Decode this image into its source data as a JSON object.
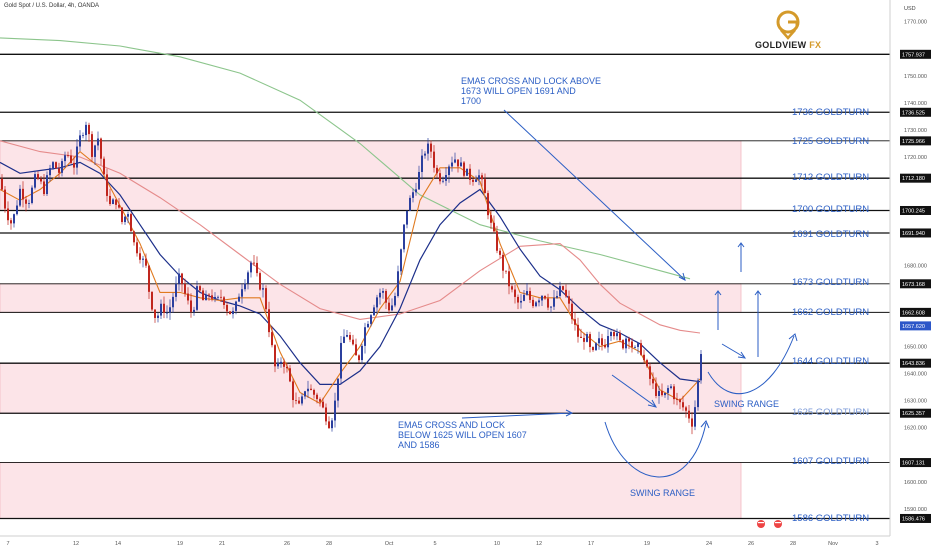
{
  "header": {
    "title": "Gold Spot / U.S. Dollar, 4h, OANDA"
  },
  "logo": {
    "word_main": "GOLDVIEW",
    "word_accent": "FX"
  },
  "axis_unit": "USD",
  "annotations": {
    "ema_above": [
      "EMA5 CROSS AND LOCK ABOVE",
      "1673 WILL OPEN 1691 AND",
      "1700"
    ],
    "ema_below": [
      "EMA5 CROSS AND LOCK",
      "BELOW 1625 WILL OPEN 1607",
      "AND 1586"
    ],
    "swing_range_1": "SWING RANGE",
    "swing_range_2": "SWING RANGE"
  },
  "colors": {
    "accent_blue": "#2b5ec4",
    "zone_fill": "#fce4e8",
    "bull": "#2b3f9e",
    "bear": "#c0261e",
    "ema5": "#e07a1f",
    "ema_blue": "#1c2f8a",
    "ema_red": "#e58b8b",
    "ema_green": "#8cc58c"
  },
  "chart_data": {
    "type": "candlestick",
    "symbol": "XAUUSD",
    "timeframe": "4h",
    "ylim": [
      1580,
      1778
    ],
    "y_ticks": [
      1590,
      1600,
      1610,
      1620,
      1630,
      1640,
      1650,
      1660,
      1670,
      1680,
      1690,
      1700,
      1710,
      1720,
      1730,
      1740,
      1750,
      1760,
      1770
    ],
    "x_labels": [
      "7",
      "12",
      "14",
      "19",
      "21",
      "26",
      "28",
      "Oct",
      "5",
      "10",
      "12",
      "17",
      "19",
      "24",
      "26",
      "28",
      "Nov",
      "3"
    ],
    "level_lines": [
      {
        "label": "1757.937",
        "value": 1757.937
      },
      {
        "label": "1736.525",
        "value": 1736.525
      },
      {
        "label": "1725.966",
        "value": 1725.966
      },
      {
        "label": "1712.180",
        "value": 1712.18
      },
      {
        "label": "1700.245",
        "value": 1700.245
      },
      {
        "label": "1691.940",
        "value": 1691.94
      },
      {
        "label": "1673.168",
        "value": 1673.168
      },
      {
        "label": "1662.608",
        "value": 1662.608
      },
      {
        "label": "1643.836",
        "value": 1643.836
      },
      {
        "label": "1625.357",
        "value": 1625.357
      },
      {
        "label": "1607.131",
        "value": 1607.131
      },
      {
        "label": "1586.476",
        "value": 1586.476
      }
    ],
    "current_price": {
      "label": "1657.620",
      "value": 1657.62
    },
    "goldturns": [
      {
        "label": "1736 GOLDTURN",
        "value": 1736
      },
      {
        "label": "1725 GOLDTURN",
        "value": 1725
      },
      {
        "label": "1712 GOLDTURN",
        "value": 1712
      },
      {
        "label": "1700 GOLDTURN",
        "value": 1700
      },
      {
        "label": "1691 GOLDTURN",
        "value": 1691
      },
      {
        "label": "1673 GOLDTURN",
        "value": 1673
      },
      {
        "label": "1662 GOLDTURN",
        "value": 1662
      },
      {
        "label": "1644 GOLDTURN",
        "value": 1644
      },
      {
        "label": "1625 GOLDTURN",
        "value": 1625
      },
      {
        "label": "1607 GOLDTURN",
        "value": 1607
      },
      {
        "label": "1586 GOLDTURN",
        "value": 1586
      }
    ],
    "zones": [
      {
        "from": 1700.245,
        "to": 1725.966
      },
      {
        "from": 1662.608,
        "to": 1673.168
      },
      {
        "from": 1625.357,
        "to": 1643.836
      },
      {
        "from": 1586.476,
        "to": 1607.131
      }
    ],
    "price_path": [
      [
        0,
        1712
      ],
      [
        6,
        1700
      ],
      [
        12,
        1695
      ],
      [
        20,
        1708
      ],
      [
        28,
        1703
      ],
      [
        36,
        1713
      ],
      [
        44,
        1708
      ],
      [
        52,
        1718
      ],
      [
        60,
        1714
      ],
      [
        66,
        1722
      ],
      [
        74,
        1717
      ],
      [
        80,
        1727
      ],
      [
        86,
        1733
      ],
      [
        92,
        1722
      ],
      [
        98,
        1727
      ],
      [
        104,
        1712
      ],
      [
        110,
        1702
      ],
      [
        116,
        1704
      ],
      [
        122,
        1696
      ],
      [
        128,
        1700
      ],
      [
        134,
        1688
      ],
      [
        140,
        1684
      ],
      [
        146,
        1679
      ],
      [
        150,
        1668
      ],
      [
        156,
        1660
      ],
      [
        162,
        1665
      ],
      [
        168,
        1662
      ],
      [
        174,
        1670
      ],
      [
        180,
        1676
      ],
      [
        186,
        1668
      ],
      [
        192,
        1662
      ],
      [
        198,
        1672
      ],
      [
        204,
        1666
      ],
      [
        210,
        1670
      ],
      [
        216,
        1666
      ],
      [
        222,
        1669
      ],
      [
        228,
        1663
      ],
      [
        234,
        1662
      ],
      [
        240,
        1671
      ],
      [
        246,
        1676
      ],
      [
        252,
        1682
      ],
      [
        258,
        1674
      ],
      [
        264,
        1670
      ],
      [
        270,
        1654
      ],
      [
        276,
        1640
      ],
      [
        282,
        1646
      ],
      [
        288,
        1640
      ],
      [
        294,
        1630
      ],
      [
        300,
        1627
      ],
      [
        306,
        1636
      ],
      [
        312,
        1633
      ],
      [
        318,
        1631
      ],
      [
        324,
        1626
      ],
      [
        330,
        1621
      ],
      [
        336,
        1631
      ],
      [
        340,
        1648
      ],
      [
        346,
        1656
      ],
      [
        352,
        1650
      ],
      [
        358,
        1644
      ],
      [
        364,
        1656
      ],
      [
        370,
        1662
      ],
      [
        376,
        1668
      ],
      [
        382,
        1671
      ],
      [
        388,
        1664
      ],
      [
        394,
        1666
      ],
      [
        400,
        1682
      ],
      [
        406,
        1700
      ],
      [
        412,
        1706
      ],
      [
        418,
        1712
      ],
      [
        424,
        1722
      ],
      [
        430,
        1724
      ],
      [
        436,
        1714
      ],
      [
        442,
        1712
      ],
      [
        448,
        1717
      ],
      [
        454,
        1720
      ],
      [
        460,
        1717
      ],
      [
        466,
        1714
      ],
      [
        472,
        1712
      ],
      [
        478,
        1714
      ],
      [
        484,
        1708
      ],
      [
        490,
        1696
      ],
      [
        496,
        1688
      ],
      [
        502,
        1680
      ],
      [
        508,
        1674
      ],
      [
        514,
        1668
      ],
      [
        520,
        1665
      ],
      [
        526,
        1670
      ],
      [
        532,
        1666
      ],
      [
        538,
        1668
      ],
      [
        544,
        1670
      ],
      [
        550,
        1664
      ],
      [
        556,
        1668
      ],
      [
        562,
        1672
      ],
      [
        568,
        1666
      ],
      [
        574,
        1658
      ],
      [
        580,
        1652
      ],
      [
        586,
        1654
      ],
      [
        592,
        1646
      ],
      [
        598,
        1652
      ],
      [
        604,
        1650
      ],
      [
        610,
        1658
      ],
      [
        616,
        1654
      ],
      [
        622,
        1650
      ],
      [
        628,
        1655
      ],
      [
        634,
        1648
      ],
      [
        640,
        1650
      ],
      [
        646,
        1642
      ],
      [
        652,
        1636
      ],
      [
        658,
        1632
      ],
      [
        664,
        1631
      ],
      [
        670,
        1636
      ],
      [
        676,
        1630
      ],
      [
        682,
        1628
      ],
      [
        688,
        1625
      ],
      [
        692,
        1622
      ],
      [
        696,
        1630
      ],
      [
        700,
        1644
      ],
      [
        703,
        1657.6
      ]
    ],
    "ema5_path": [
      [
        0,
        1708
      ],
      [
        20,
        1704
      ],
      [
        40,
        1708
      ],
      [
        60,
        1714
      ],
      [
        80,
        1722
      ],
      [
        100,
        1716
      ],
      [
        120,
        1702
      ],
      [
        140,
        1688
      ],
      [
        160,
        1670
      ],
      [
        180,
        1670
      ],
      [
        200,
        1668
      ],
      [
        220,
        1667
      ],
      [
        240,
        1668
      ],
      [
        260,
        1668
      ],
      [
        280,
        1648
      ],
      [
        300,
        1633
      ],
      [
        320,
        1629
      ],
      [
        340,
        1640
      ],
      [
        360,
        1650
      ],
      [
        380,
        1664
      ],
      [
        400,
        1674
      ],
      [
        420,
        1704
      ],
      [
        440,
        1716
      ],
      [
        460,
        1716
      ],
      [
        480,
        1711
      ],
      [
        500,
        1688
      ],
      [
        520,
        1670
      ],
      [
        540,
        1668
      ],
      [
        560,
        1668
      ],
      [
        580,
        1656
      ],
      [
        600,
        1650
      ],
      [
        620,
        1652
      ],
      [
        640,
        1648
      ],
      [
        660,
        1634
      ],
      [
        680,
        1630
      ],
      [
        700,
        1638
      ]
    ],
    "ema_blue_path": [
      [
        0,
        1718
      ],
      [
        20,
        1714
      ],
      [
        40,
        1715
      ],
      [
        60,
        1716
      ],
      [
        80,
        1718
      ],
      [
        100,
        1714
      ],
      [
        120,
        1706
      ],
      [
        140,
        1695
      ],
      [
        160,
        1684
      ],
      [
        180,
        1676
      ],
      [
        200,
        1670
      ],
      [
        220,
        1667
      ],
      [
        240,
        1665
      ],
      [
        260,
        1662
      ],
      [
        280,
        1654
      ],
      [
        300,
        1644
      ],
      [
        320,
        1636
      ],
      [
        340,
        1636
      ],
      [
        360,
        1641
      ],
      [
        380,
        1650
      ],
      [
        400,
        1664
      ],
      [
        420,
        1682
      ],
      [
        440,
        1695
      ],
      [
        460,
        1703
      ],
      [
        480,
        1708
      ],
      [
        500,
        1698
      ],
      [
        520,
        1686
      ],
      [
        540,
        1676
      ],
      [
        560,
        1671
      ],
      [
        580,
        1664
      ],
      [
        600,
        1658
      ],
      [
        620,
        1655
      ],
      [
        640,
        1651
      ],
      [
        660,
        1644
      ],
      [
        680,
        1638
      ],
      [
        700,
        1637
      ]
    ],
    "ema_red_path": [
      [
        0,
        1726
      ],
      [
        40,
        1722
      ],
      [
        80,
        1720
      ],
      [
        120,
        1714
      ],
      [
        160,
        1705
      ],
      [
        200,
        1695
      ],
      [
        240,
        1684
      ],
      [
        280,
        1673
      ],
      [
        320,
        1664
      ],
      [
        360,
        1660
      ],
      [
        400,
        1662
      ],
      [
        440,
        1667
      ],
      [
        480,
        1678
      ],
      [
        520,
        1687
      ],
      [
        560,
        1688
      ],
      [
        580,
        1682
      ],
      [
        600,
        1673
      ],
      [
        620,
        1666
      ],
      [
        640,
        1662
      ],
      [
        660,
        1658
      ],
      [
        680,
        1656
      ],
      [
        700,
        1655
      ]
    ],
    "ema_green_path": [
      [
        0,
        1764
      ],
      [
        60,
        1763
      ],
      [
        120,
        1761
      ],
      [
        180,
        1757
      ],
      [
        240,
        1751
      ],
      [
        300,
        1741
      ],
      [
        360,
        1725
      ],
      [
        420,
        1706
      ],
      [
        480,
        1695
      ],
      [
        540,
        1689
      ],
      [
        600,
        1684
      ],
      [
        660,
        1678
      ],
      [
        690,
        1675
      ]
    ]
  }
}
